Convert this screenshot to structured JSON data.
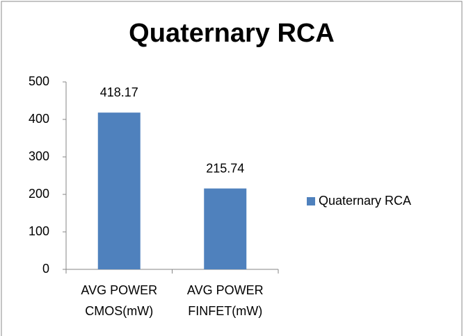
{
  "chart_data": {
    "type": "bar",
    "title": "Quaternary RCA",
    "categories": [
      "AVG POWER CMOS(mW)",
      "AVG POWER FINFET(mW)"
    ],
    "series": [
      {
        "name": "Quaternary RCA",
        "color": "#4f81bd",
        "values": [
          418.17,
          215.74
        ]
      }
    ],
    "ylim": [
      0,
      500
    ],
    "yticks": [
      0,
      100,
      200,
      300,
      400,
      500
    ],
    "grid": false,
    "legend": "right"
  }
}
